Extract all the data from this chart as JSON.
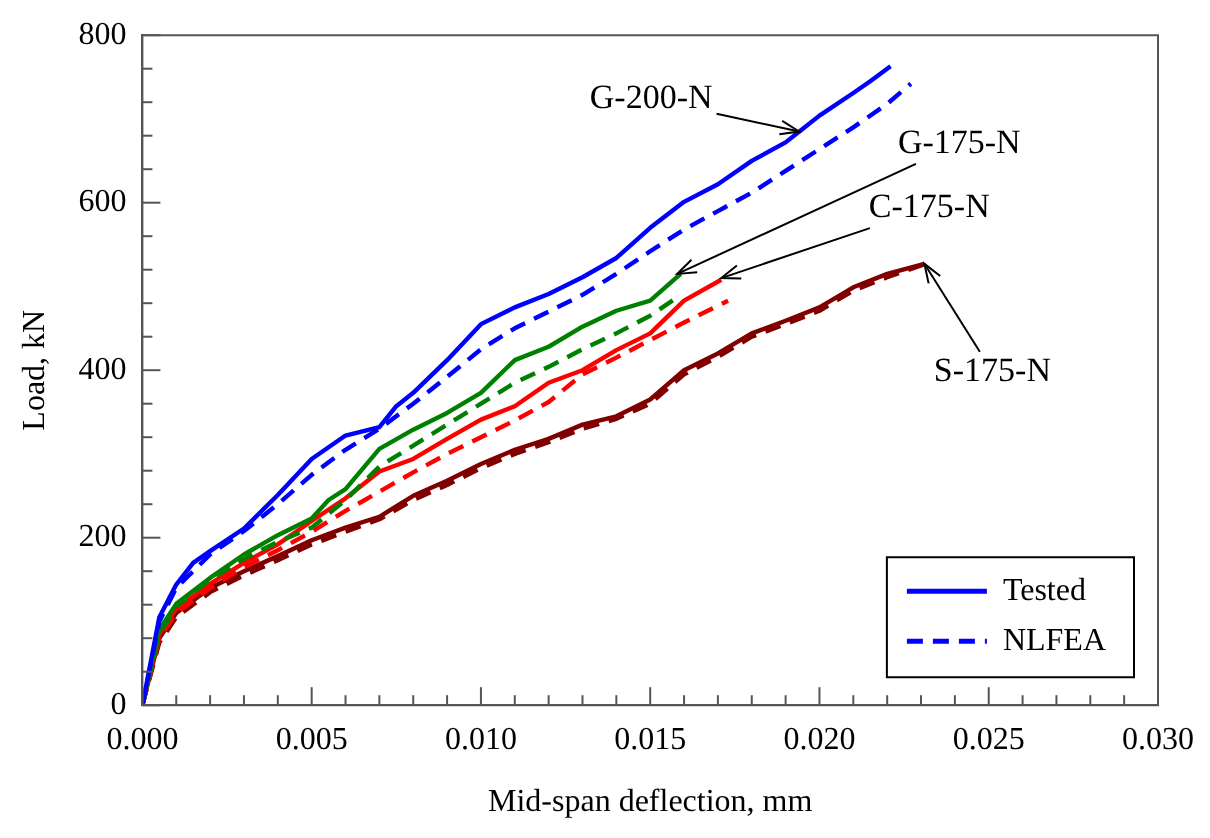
{
  "chart_data": {
    "type": "line",
    "xlabel": "Mid-span deflection, mm",
    "ylabel": "Load, kN",
    "xlim": [
      0,
      0.03
    ],
    "ylim": [
      0,
      800
    ],
    "xticks": [
      {
        "value": 0,
        "label": "0.000"
      },
      {
        "value": 0.001,
        "label": null
      },
      {
        "value": 0.002,
        "label": null
      },
      {
        "value": 0.003,
        "label": null
      },
      {
        "value": 0.004,
        "label": null
      },
      {
        "value": 0.005,
        "label": "0.005"
      },
      {
        "value": 0.006,
        "label": null
      },
      {
        "value": 0.007,
        "label": null
      },
      {
        "value": 0.008,
        "label": null
      },
      {
        "value": 0.009,
        "label": null
      },
      {
        "value": 0.01,
        "label": "0.010"
      },
      {
        "value": 0.011,
        "label": null
      },
      {
        "value": 0.012,
        "label": null
      },
      {
        "value": 0.013,
        "label": null
      },
      {
        "value": 0.014,
        "label": null
      },
      {
        "value": 0.015,
        "label": "0.015"
      },
      {
        "value": 0.016,
        "label": null
      },
      {
        "value": 0.017,
        "label": null
      },
      {
        "value": 0.018,
        "label": null
      },
      {
        "value": 0.019,
        "label": null
      },
      {
        "value": 0.02,
        "label": "0.020"
      },
      {
        "value": 0.021,
        "label": null
      },
      {
        "value": 0.022,
        "label": null
      },
      {
        "value": 0.023,
        "label": null
      },
      {
        "value": 0.024,
        "label": null
      },
      {
        "value": 0.025,
        "label": "0.025"
      },
      {
        "value": 0.026,
        "label": null
      },
      {
        "value": 0.027,
        "label": null
      },
      {
        "value": 0.028,
        "label": null
      },
      {
        "value": 0.029,
        "label": null
      },
      {
        "value": 0.03,
        "label": "0.030"
      }
    ],
    "yticks": [
      0,
      {
        "value": 40,
        "label": null
      },
      {
        "value": 80,
        "label": null
      },
      {
        "value": 120,
        "label": null
      },
      {
        "value": 160,
        "label": null
      },
      200,
      {
        "value": 240,
        "label": null
      },
      {
        "value": 280,
        "label": null
      },
      {
        "value": 320,
        "label": null
      },
      {
        "value": 360,
        "label": null
      },
      400,
      {
        "value": 440,
        "label": null
      },
      {
        "value": 480,
        "label": null
      },
      {
        "value": 520,
        "label": null
      },
      {
        "value": 560,
        "label": null
      },
      600,
      {
        "value": 640,
        "label": null
      },
      {
        "value": 680,
        "label": null
      },
      {
        "value": 720,
        "label": null
      },
      {
        "value": 760,
        "label": null
      },
      800
    ],
    "legend": "bottom right",
    "marker": "none",
    "series": [
      {
        "name": "Tested",
        "color": "#0000ff",
        "line_style": "solid",
        "x": [
          0,
          0.0005,
          0.001,
          0.0015,
          0.002,
          0.003,
          0.004,
          0.005,
          0.006,
          0.007,
          0.0075,
          0.008,
          0.009,
          0.01,
          0.011,
          0.012,
          0.013,
          0.014,
          0.015,
          0.016,
          0.017,
          0.018,
          0.019,
          0.0195,
          0.02,
          0.021,
          0.0215,
          0.0221
        ],
        "values": [
          0,
          105,
          144,
          170,
          184,
          211,
          251,
          294,
          322,
          332,
          357,
          373,
          412,
          455,
          475,
          491,
          511,
          534,
          570,
          601,
          622,
          650,
          672,
          688,
          704,
          731,
          745,
          763
        ]
      },
      {
        "name": "NLFEA",
        "color": "#0000ff",
        "line_style": "dashed",
        "x": [
          0,
          0.0005,
          0.001,
          0.002,
          0.003,
          0.004,
          0.005,
          0.006,
          0.007,
          0.008,
          0.009,
          0.01,
          0.011,
          0.012,
          0.013,
          0.014,
          0.015,
          0.016,
          0.017,
          0.018,
          0.019,
          0.02,
          0.021,
          0.022,
          0.0227
        ],
        "values": [
          0,
          100,
          140,
          180,
          208,
          240,
          275,
          305,
          330,
          360,
          392,
          425,
          450,
          470,
          490,
          515,
          542,
          568,
          590,
          612,
          638,
          664,
          690,
          718,
          742
        ]
      },
      {
        "color": "#008000",
        "line_style": "solid",
        "x": [
          0,
          0.0005,
          0.001,
          0.002,
          0.003,
          0.004,
          0.005,
          0.0055,
          0.006,
          0.007,
          0.008,
          0.009,
          0.01,
          0.011,
          0.012,
          0.013,
          0.014,
          0.015,
          0.0159
        ],
        "values": [
          0,
          90,
          121,
          152,
          180,
          203,
          223,
          245,
          258,
          306,
          329,
          349,
          373,
          412,
          428,
          452,
          471,
          483,
          515
        ]
      },
      {
        "color": "#008000",
        "line_style": "dashed",
        "x": [
          0,
          0.0005,
          0.001,
          0.002,
          0.003,
          0.004,
          0.005,
          0.006,
          0.007,
          0.008,
          0.009,
          0.01,
          0.011,
          0.012,
          0.013,
          0.014,
          0.015,
          0.0158
        ],
        "values": [
          0,
          85,
          118,
          150,
          175,
          195,
          212,
          245,
          285,
          310,
          335,
          360,
          385,
          404,
          425,
          444,
          465,
          487
        ]
      },
      {
        "color": "#ff0000",
        "line_style": "solid",
        "x": [
          0,
          0.0005,
          0.001,
          0.002,
          0.003,
          0.004,
          0.005,
          0.006,
          0.007,
          0.008,
          0.009,
          0.01,
          0.011,
          0.012,
          0.013,
          0.014,
          0.015,
          0.016,
          0.0171
        ],
        "values": [
          0,
          85,
          115,
          145,
          170,
          192,
          220,
          247,
          279,
          294,
          318,
          341,
          357,
          385,
          400,
          424,
          444,
          483,
          508
        ]
      },
      {
        "color": "#ff0000",
        "line_style": "dashed",
        "x": [
          0,
          0.0005,
          0.001,
          0.002,
          0.003,
          0.004,
          0.005,
          0.006,
          0.007,
          0.008,
          0.009,
          0.01,
          0.011,
          0.012,
          0.013,
          0.014,
          0.015,
          0.016,
          0.0173
        ],
        "values": [
          0,
          80,
          110,
          140,
          165,
          185,
          207,
          232,
          255,
          278,
          300,
          320,
          340,
          362,
          395,
          415,
          436,
          457,
          483
        ]
      },
      {
        "color": "#800000",
        "line_style": "solid",
        "x": [
          0,
          0.0005,
          0.001,
          0.002,
          0.003,
          0.004,
          0.005,
          0.006,
          0.007,
          0.008,
          0.009,
          0.01,
          0.011,
          0.012,
          0.013,
          0.014,
          0.015,
          0.016,
          0.017,
          0.018,
          0.019,
          0.02,
          0.021,
          0.022,
          0.0231
        ],
        "values": [
          0,
          80,
          110,
          140,
          160,
          178,
          197,
          212,
          225,
          250,
          268,
          288,
          305,
          318,
          335,
          345,
          365,
          400,
          420,
          444,
          459,
          475,
          499,
          515,
          527
        ]
      },
      {
        "color": "#800000",
        "line_style": "dashed",
        "x": [
          0,
          0.0005,
          0.001,
          0.002,
          0.003,
          0.004,
          0.005,
          0.006,
          0.007,
          0.008,
          0.009,
          0.01,
          0.011,
          0.012,
          0.013,
          0.014,
          0.015,
          0.016,
          0.017,
          0.018,
          0.019,
          0.02,
          0.021,
          0.022,
          0.0232
        ],
        "values": [
          0,
          75,
          105,
          135,
          155,
          173,
          192,
          207,
          222,
          245,
          263,
          283,
          300,
          314,
          330,
          342,
          360,
          395,
          416,
          440,
          455,
          471,
          495,
          511,
          528
        ]
      }
    ],
    "annotations": [
      {
        "text": "G-200-N",
        "x": 0.0194,
        "y": 685
      },
      {
        "text": "G-175-N",
        "x": 0.0158,
        "y": 515
      },
      {
        "text": "C-175-N",
        "x": 0.0171,
        "y": 510
      },
      {
        "text": "S-175-N",
        "x": 0.0231,
        "y": 527
      }
    ]
  }
}
